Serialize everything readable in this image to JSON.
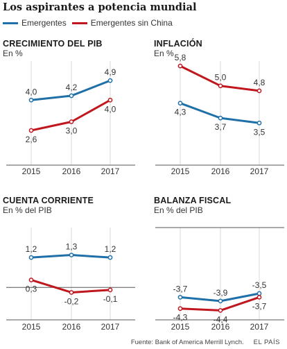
{
  "header": {
    "title": "Los aspirantes a potencia mundial"
  },
  "legend": [
    {
      "name": "Emergentes",
      "color": "#1f6fa8"
    },
    {
      "name": "Emergentes sin China",
      "color": "#c0161e"
    }
  ],
  "footer": {
    "source": "Fuente: Bank of America Merrill Lynch.",
    "brand": "EL PAÍS"
  },
  "chart_data": [
    {
      "type": "line",
      "title": "CRECIMIENTO DEL PIB",
      "ylabel": "En %",
      "categories": [
        "2015",
        "2016",
        "2017"
      ],
      "series": [
        {
          "name": "Emergentes",
          "color": "#1f6fa8",
          "values": [
            4.0,
            4.2,
            4.9
          ],
          "labels": [
            "4,0",
            "4,2",
            "4,9"
          ]
        },
        {
          "name": "Emergentes sin China",
          "color": "#c0161e",
          "values": [
            2.6,
            3.0,
            4.0
          ],
          "labels": [
            "2,6",
            "3,0",
            "4,0"
          ]
        }
      ],
      "ylim": [
        1.0,
        5.8
      ],
      "zero_line": false
    },
    {
      "type": "line",
      "title": "INFLACIÓN",
      "ylabel": "En %",
      "categories": [
        "2015",
        "2016",
        "2017"
      ],
      "series": [
        {
          "name": "Emergentes",
          "color": "#1f6fa8",
          "values": [
            4.3,
            3.7,
            3.5
          ],
          "labels": [
            "4,3",
            "3,7",
            "3,5"
          ]
        },
        {
          "name": "Emergentes sin China",
          "color": "#c0161e",
          "values": [
            5.8,
            5.0,
            4.8
          ],
          "labels": [
            "5,8",
            "5,0",
            "4,8"
          ]
        }
      ],
      "ylim": [
        1.8,
        6.0
      ],
      "zero_line": false
    },
    {
      "type": "line",
      "title": "CUENTA CORRIENTE",
      "ylabel": "En % del PIB",
      "categories": [
        "2015",
        "2016",
        "2017"
      ],
      "series": [
        {
          "name": "Emergentes",
          "color": "#1f6fa8",
          "values": [
            1.2,
            1.3,
            1.2
          ],
          "labels": [
            "1,2",
            "1,3",
            "1,2"
          ]
        },
        {
          "name": "Emergentes sin China",
          "color": "#c0161e",
          "values": [
            0.3,
            -0.2,
            -0.1
          ],
          "labels": [
            "0,3",
            "-0,2",
            "-0,1"
          ]
        }
      ],
      "ylim": [
        -1.3,
        2.4
      ],
      "zero_line": true
    },
    {
      "type": "line",
      "title": "BALANZA FISCAL",
      "ylabel": "En % del PIB",
      "categories": [
        "2015",
        "2016",
        "2017"
      ],
      "series": [
        {
          "name": "Emergentes",
          "color": "#1f6fa8",
          "values": [
            -3.7,
            -3.9,
            -3.5
          ],
          "labels": [
            "-3,7",
            "-3,9",
            "-3,5"
          ]
        },
        {
          "name": "Emergentes sin China",
          "color": "#c0161e",
          "values": [
            -4.3,
            -4.4,
            -3.7
          ],
          "labels": [
            "-4,3",
            "-4,4",
            "-3,7"
          ]
        }
      ],
      "ylim": [
        -4.9,
        0.0
      ],
      "zero_line": true
    }
  ]
}
